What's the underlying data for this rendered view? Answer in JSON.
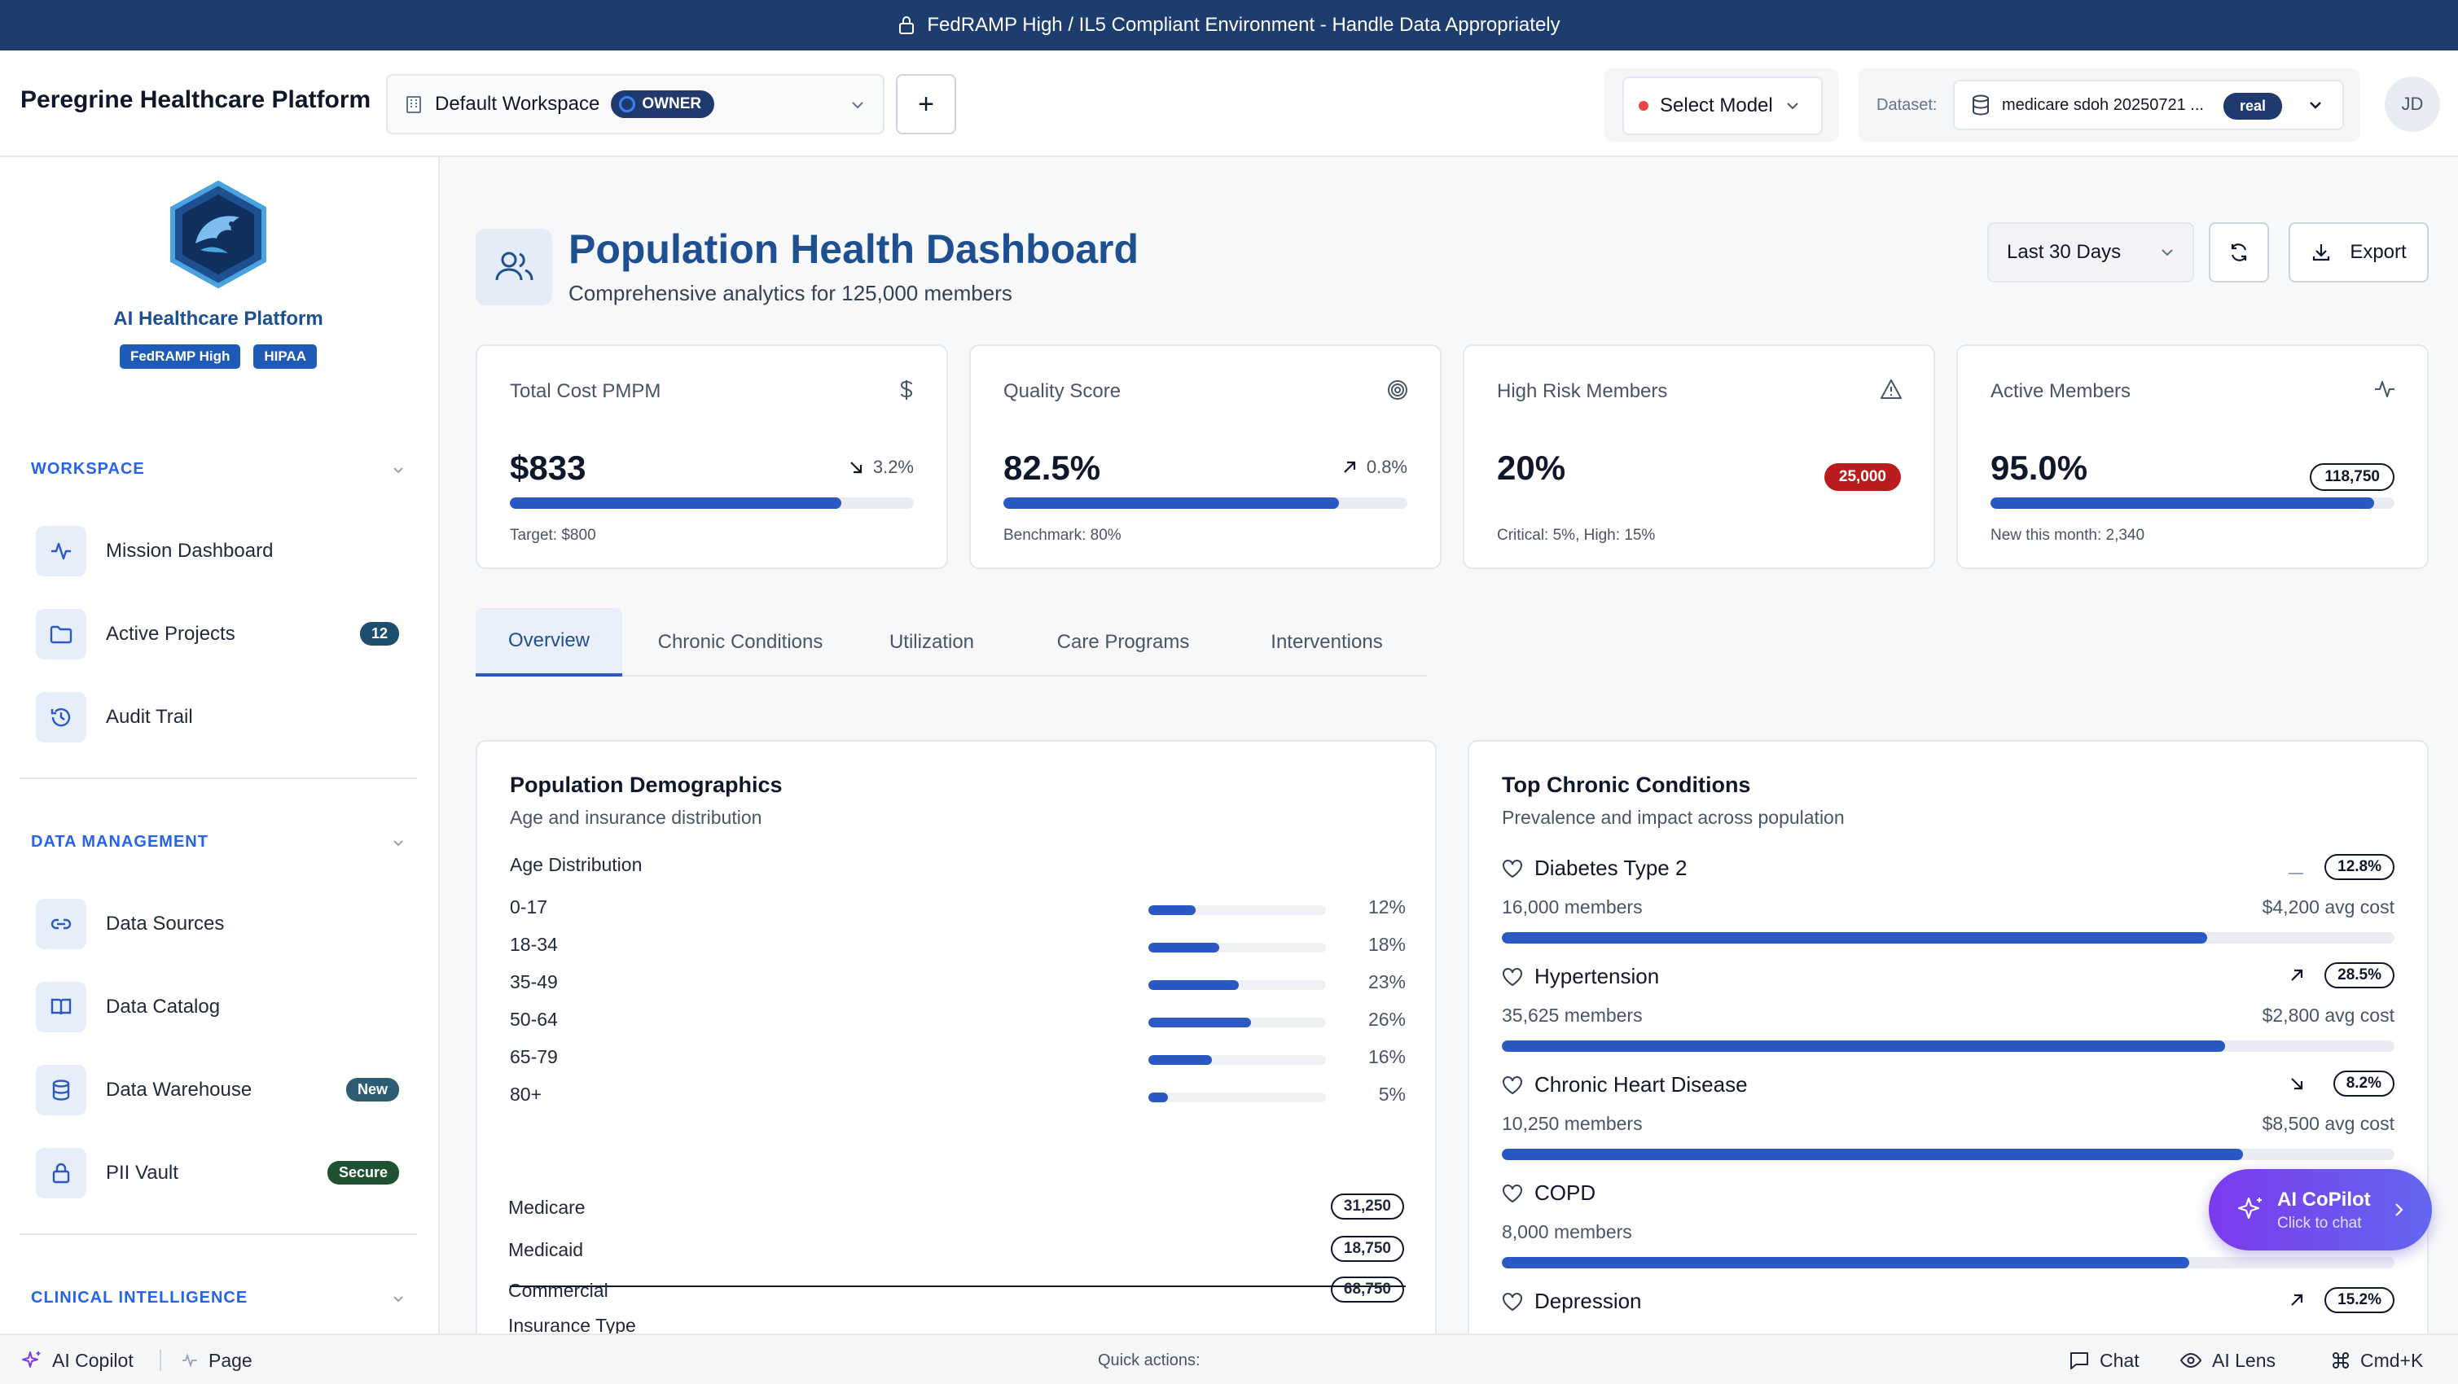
{
  "banner": {
    "text": "FedRAMP High / IL5 Compliant Environment - Handle Data Appropriately"
  },
  "header": {
    "brand": "Peregrine Healthcare Platform",
    "workspace": "Default Workspace",
    "workspace_role": "OWNER",
    "add_label": "+",
    "model": "Select Model",
    "dataset_label": "Dataset:",
    "dataset_value": "medicare sdoh 20250721 ...",
    "dataset_tag": "real",
    "avatar": "JD"
  },
  "sidebar": {
    "title": "AI Healthcare Platform",
    "badges": [
      "FedRAMP High",
      "HIPAA"
    ],
    "sections": [
      {
        "label": "WORKSPACE"
      },
      {
        "label": "DATA MANAGEMENT"
      },
      {
        "label": "CLINICAL INTELLIGENCE"
      }
    ],
    "items": [
      {
        "label": "Mission Dashboard",
        "icon": "activity-icon"
      },
      {
        "label": "Active Projects",
        "icon": "folder-icon",
        "badge": "12"
      },
      {
        "label": "Audit Trail",
        "icon": "history-icon"
      },
      {
        "label": "Data Sources",
        "icon": "link-icon"
      },
      {
        "label": "Data Catalog",
        "icon": "book-icon"
      },
      {
        "label": "Data Warehouse",
        "icon": "database-icon",
        "badge": "New"
      },
      {
        "label": "PII Vault",
        "icon": "lock-icon",
        "badge": "Secure"
      }
    ]
  },
  "page": {
    "title": "Population Health Dashboard",
    "subtitle": "Comprehensive analytics for 125,000 members",
    "period": "Last 30 Days",
    "export": "Export"
  },
  "kpis": [
    {
      "label": "Total Cost PMPM",
      "value": "$833",
      "trend": "3.2%",
      "progress": 0.82,
      "foot": "Target: $800",
      "icon": "dollar-icon"
    },
    {
      "label": "Quality Score",
      "value": "82.5%",
      "trend": "0.8%",
      "progress": 0.83,
      "foot": "Benchmark: 80%",
      "icon": "target-icon"
    },
    {
      "label": "High Risk Members",
      "value": "20%",
      "pill": "25,000",
      "foot": "Critical: 5%, High: 15%",
      "icon": "alert-triangle-icon"
    },
    {
      "label": "Active Members",
      "value": "95.0%",
      "pill": "118,750",
      "progress": 0.95,
      "foot": "New this month: 2,340",
      "icon": "pulse-icon"
    }
  ],
  "tabs": [
    "Overview",
    "Chronic Conditions",
    "Utilization",
    "Care Programs",
    "Interventions"
  ],
  "demographics": {
    "title": "Population Demographics",
    "subtitle": "Age and insurance distribution",
    "age_title": "Age Distribution",
    "ages": [
      {
        "label": "0-17",
        "pct": "12%",
        "value": 12
      },
      {
        "label": "18-34",
        "pct": "18%",
        "value": 18
      },
      {
        "label": "35-49",
        "pct": "23%",
        "value": 23
      },
      {
        "label": "50-64",
        "pct": "26%",
        "value": 26
      },
      {
        "label": "65-79",
        "pct": "16%",
        "value": 16
      },
      {
        "label": "80+",
        "pct": "5%",
        "value": 5
      }
    ],
    "insurance_title": "Insurance Type",
    "insurance": [
      {
        "label": "Medicare",
        "value": "31,250"
      },
      {
        "label": "Medicaid",
        "value": "18,750"
      },
      {
        "label": "Commercial",
        "value": "68,750"
      }
    ]
  },
  "conditions": {
    "title": "Top Chronic Conditions",
    "subtitle": "Prevalence and impact across population",
    "items": [
      {
        "name": "Diabetes Type 2",
        "prevalence": "12.8%",
        "members": "16,000 members",
        "cost": "$4,200 avg cost",
        "trend": "flat",
        "progress": 0.79
      },
      {
        "name": "Hypertension",
        "prevalence": "28.5%",
        "members": "35,625 members",
        "cost": "$2,800 avg cost",
        "trend": "up",
        "progress": 0.81
      },
      {
        "name": "Chronic Heart Disease",
        "prevalence": "8.2%",
        "members": "10,250 members",
        "cost": "$8,500 avg cost",
        "trend": "down",
        "progress": 0.83
      },
      {
        "name": "COPD",
        "prevalence": "",
        "members": "8,000 members",
        "cost": "",
        "trend": "",
        "progress": 0.77
      },
      {
        "name": "Depression",
        "prevalence": "15.2%",
        "members": "",
        "cost": "",
        "trend": "up",
        "progress": 0
      }
    ]
  },
  "copilot": {
    "title": "AI CoPilot",
    "subtitle": "Click to chat"
  },
  "bottombar": {
    "copilot": "AI Copilot",
    "page": "Page",
    "quick": "Quick actions:",
    "chat": "Chat",
    "lens": "AI Lens",
    "shortcut": "Cmd+K"
  },
  "colors": {
    "navy": "#1c3d6e",
    "accent": "#2b59c3",
    "title": "#1d4f91",
    "danger": "#b91c1c",
    "copilot": "#7c3aed"
  }
}
